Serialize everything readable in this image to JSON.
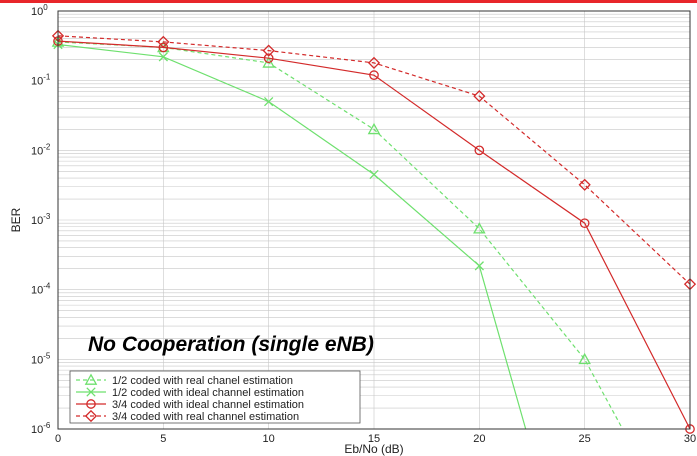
{
  "colors": {
    "top_bar": "#e8262a",
    "green": "#6ee06e",
    "red": "#d32a2a",
    "grid": "#c8c8c8",
    "frame": "#333333"
  },
  "chart_data": {
    "type": "line",
    "xlabel": "Eb/No (dB)",
    "ylabel": "BER",
    "xlim": [
      0,
      30
    ],
    "ylim": [
      1e-06,
      1
    ],
    "yscale": "log",
    "grid": true,
    "legend_position": "bottom-left",
    "x_ticks": [
      "0",
      "5",
      "10",
      "15",
      "20",
      "25",
      "30"
    ],
    "y_ticks": [
      {
        "base": "10",
        "exp": "0",
        "value": 1
      },
      {
        "base": "10",
        "exp": "-1",
        "value": 0.1
      },
      {
        "base": "10",
        "exp": "-2",
        "value": 0.01
      },
      {
        "base": "10",
        "exp": "-3",
        "value": 0.001
      },
      {
        "base": "10",
        "exp": "-4",
        "value": 0.0001
      },
      {
        "base": "10",
        "exp": "-5",
        "value": 1e-05
      },
      {
        "base": "10",
        "exp": "-6",
        "value": 1e-06
      }
    ],
    "annotation": "No Cooperation (single eNB)",
    "series": [
      {
        "name": "1/2 coded with real chanel estimation",
        "color": "#6ee06e",
        "dash": true,
        "marker": "triangle",
        "points": [
          [
            0,
            0.36
          ],
          [
            5,
            0.3
          ],
          [
            10,
            0.18
          ],
          [
            15,
            0.02
          ],
          [
            20,
            0.00075
          ],
          [
            25,
            1e-05
          ],
          [
            26.8,
            1e-06
          ]
        ]
      },
      {
        "name": "1/2 coded with ideal channel estimation",
        "color": "#6ee06e",
        "dash": false,
        "marker": "x",
        "points": [
          [
            0,
            0.33
          ],
          [
            5,
            0.22
          ],
          [
            10,
            0.05
          ],
          [
            15,
            0.0045
          ],
          [
            20,
            0.00022
          ],
          [
            22.2,
            1e-06
          ]
        ]
      },
      {
        "name": "3/4 coded with ideal channel estimation",
        "color": "#d32a2a",
        "dash": false,
        "marker": "circle",
        "points": [
          [
            0,
            0.37
          ],
          [
            5,
            0.3
          ],
          [
            10,
            0.21
          ],
          [
            15,
            0.12
          ],
          [
            20,
            0.01
          ],
          [
            25,
            0.0009
          ],
          [
            30,
            1e-06
          ]
        ]
      },
      {
        "name": "3/4 coded with real channel estimation",
        "color": "#d32a2a",
        "dash": true,
        "marker": "diamond",
        "points": [
          [
            0,
            0.44
          ],
          [
            5,
            0.36
          ],
          [
            10,
            0.27
          ],
          [
            15,
            0.18
          ],
          [
            20,
            0.06
          ],
          [
            25,
            0.0032
          ],
          [
            30,
            0.00012
          ]
        ]
      }
    ]
  }
}
